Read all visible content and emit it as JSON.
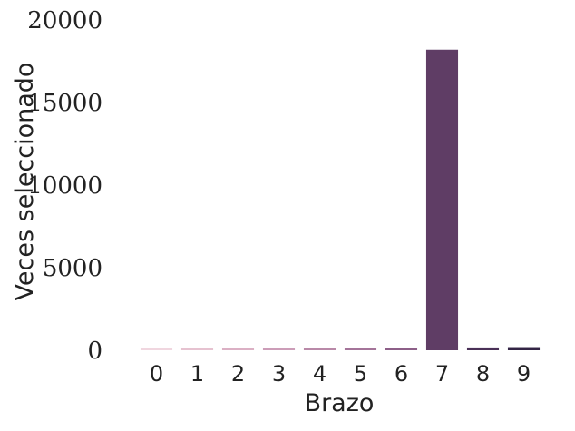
{
  "chart_data": {
    "type": "bar",
    "title": "",
    "xlabel": "Brazo",
    "ylabel": "Veces seleccionado",
    "categories": [
      "0",
      "1",
      "2",
      "3",
      "4",
      "5",
      "6",
      "7",
      "8",
      "9"
    ],
    "values": [
      95,
      110,
      120,
      125,
      130,
      140,
      150,
      18200,
      170,
      190
    ],
    "ylim": [
      0,
      20000
    ],
    "yticks": [
      "0",
      "5000",
      "10000",
      "15000",
      "20000"
    ],
    "grid": false,
    "legend": "none",
    "colors": [
      "#f0d6df",
      "#e6c2d0",
      "#dbb0c4",
      "#cc9db8",
      "#b989a8",
      "#a47499",
      "#8d5f88",
      "#5f3d65",
      "#4a3057",
      "#332445"
    ]
  }
}
